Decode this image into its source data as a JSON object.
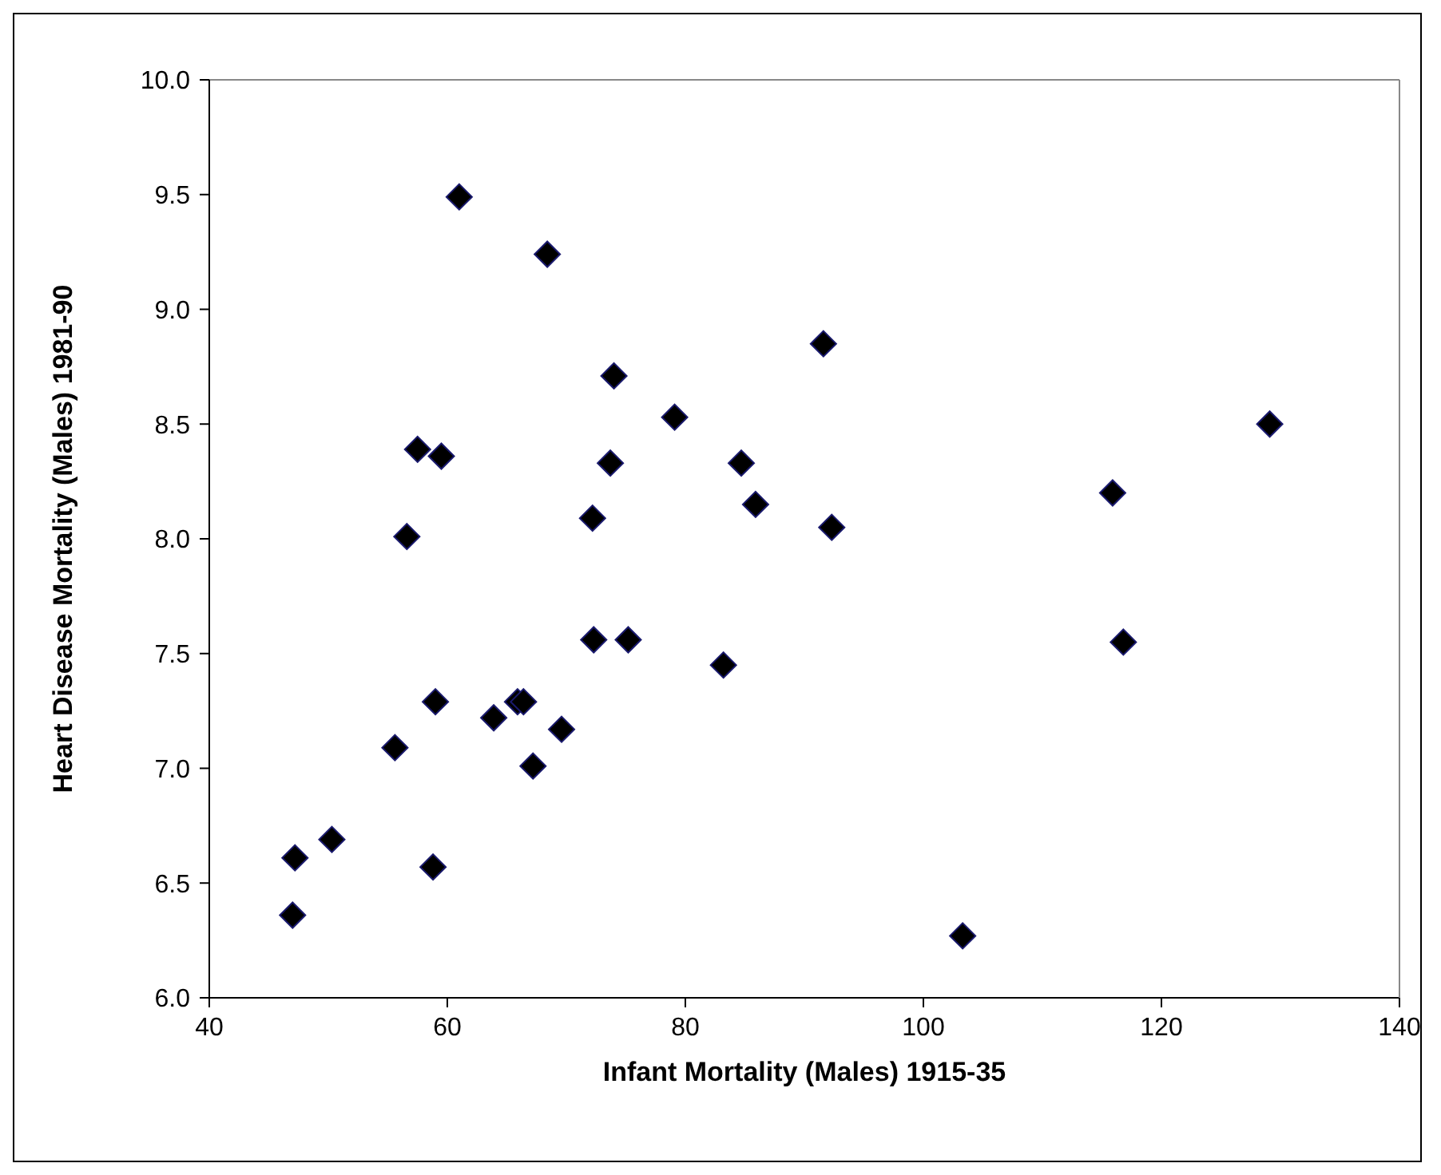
{
  "chart_data": {
    "type": "scatter",
    "xlabel": "Infant Mortality (Males) 1915-35",
    "ylabel": "Heart Disease Mortality (Males) 1981-90",
    "x": [
      47,
      47.2,
      50.3,
      55.6,
      56.6,
      57.5,
      59.5,
      59,
      58.8,
      61,
      63.9,
      65.9,
      66.4,
      67.2,
      69.6,
      68.4,
      72.2,
      72.3,
      73.7,
      74,
      75.2,
      79.1,
      83.2,
      84.7,
      85.9,
      91.6,
      92.3,
      103.3,
      115.9,
      116.8,
      129.1
    ],
    "values": [
      6.36,
      6.61,
      6.69,
      7.09,
      8.01,
      8.39,
      8.36,
      7.29,
      6.57,
      9.49,
      7.22,
      7.29,
      7.29,
      7.01,
      7.17,
      9.24,
      8.09,
      7.56,
      8.33,
      8.71,
      7.56,
      8.53,
      7.45,
      8.33,
      8.15,
      8.85,
      8.05,
      6.27,
      8.2,
      7.55,
      8.5
    ],
    "color": "#000000",
    "marker": "diamond",
    "xlim": [
      40,
      140
    ],
    "xticks": [
      40,
      60,
      80,
      100,
      120,
      140
    ],
    "ylim": [
      6,
      10
    ],
    "yticks": [
      {
        "value": 6,
        "label": "6.0"
      },
      {
        "value": 6.5,
        "label": "6.5"
      },
      {
        "value": 7,
        "label": "7.0"
      },
      {
        "value": 7.5,
        "label": "7.5"
      },
      {
        "value": 8,
        "label": "8.0"
      },
      {
        "value": 8.5,
        "label": "8.5"
      },
      {
        "value": 9,
        "label": "9.0"
      },
      {
        "value": 9.5,
        "label": "9.5"
      },
      {
        "value": 10,
        "label": "10.0"
      }
    ],
    "legend": false
  }
}
